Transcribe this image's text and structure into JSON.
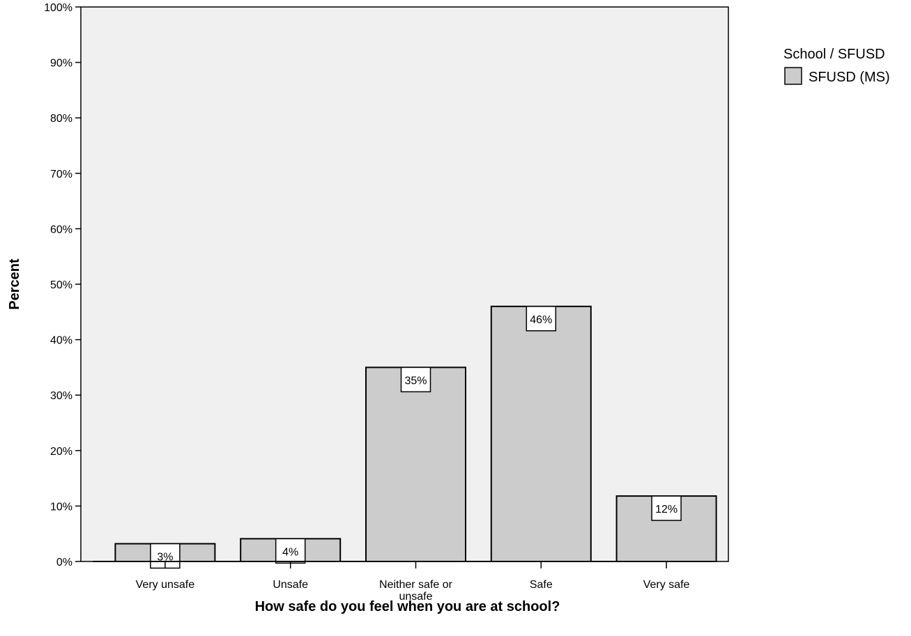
{
  "chart_data": {
    "type": "bar",
    "categories": [
      "Very unsafe",
      "Unsafe",
      "Neither safe or unsafe",
      "Safe",
      "Very safe"
    ],
    "category_lines": [
      [
        "Very unsafe"
      ],
      [
        "Unsafe"
      ],
      [
        "Neither safe or",
        "unsafe"
      ],
      [
        "Safe"
      ],
      [
        "Very safe"
      ]
    ],
    "values": [
      3.2,
      4.1,
      35,
      46,
      11.8
    ],
    "data_labels": [
      "3%",
      "4%",
      "35%",
      "46%",
      "12%"
    ],
    "xlabel": "How safe do you feel when you are at school?",
    "ylabel": "Percent",
    "ylim": [
      0,
      100
    ],
    "yticks": [
      0,
      10,
      20,
      30,
      40,
      50,
      60,
      70,
      80,
      90,
      100
    ],
    "ytick_labels": [
      "0%",
      "10%",
      "20%",
      "30%",
      "40%",
      "50%",
      "60%",
      "70%",
      "80%",
      "90%",
      "100%"
    ],
    "legend": {
      "title": "School / SFUSD",
      "entries": [
        {
          "name": "SFUSD (MS)",
          "color": "#cccccc"
        }
      ],
      "placement": "right"
    },
    "grid": false,
    "colors": {
      "bar": "#cccccc",
      "plot_background": "#f0f0f0",
      "outline": "#000000"
    }
  }
}
